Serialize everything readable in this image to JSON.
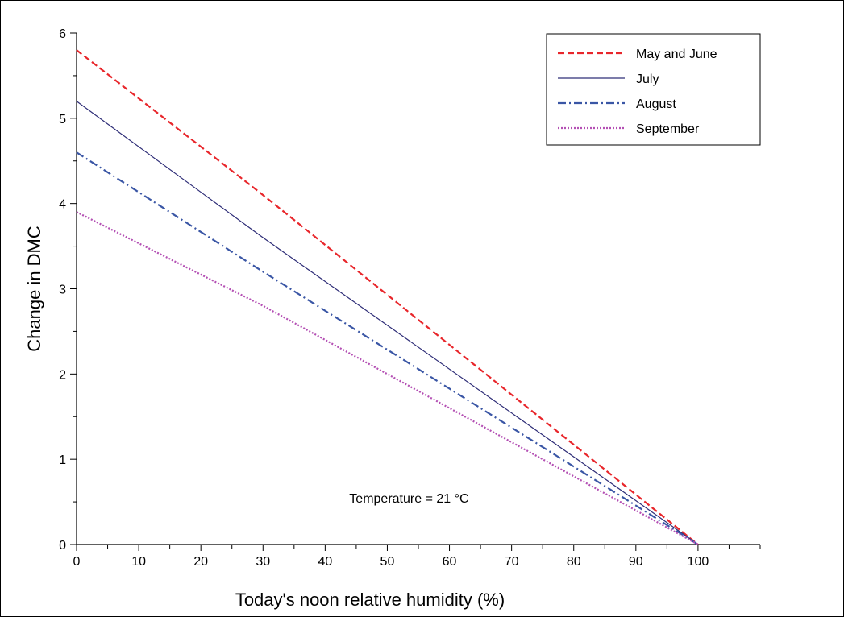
{
  "chart_data": {
    "type": "line",
    "title": "",
    "xlabel": "Today's noon relative humidity (%)",
    "ylabel": "Change in DMC",
    "xlim": [
      0,
      110
    ],
    "ylim": [
      0,
      6
    ],
    "x_ticks": [
      0,
      10,
      20,
      30,
      40,
      50,
      60,
      70,
      80,
      90,
      100
    ],
    "y_ticks": [
      0,
      1,
      2,
      3,
      4,
      5,
      6
    ],
    "grid": false,
    "legend_position": "top-right",
    "annotation": "Temperature = 21 °C",
    "series": [
      {
        "name": "May and June",
        "color": "#e8262b",
        "dash": "dashed",
        "x": [
          0,
          30,
          100
        ],
        "y": [
          5.8,
          4.1,
          0
        ]
      },
      {
        "name": "July",
        "color": "#2e2d77",
        "dash": "solid",
        "x": [
          0,
          30,
          100
        ],
        "y": [
          5.2,
          3.6,
          0
        ]
      },
      {
        "name": "August",
        "color": "#3a56a5",
        "dash": "dash-dot",
        "x": [
          0,
          30,
          100
        ],
        "y": [
          4.6,
          3.2,
          0
        ]
      },
      {
        "name": "September",
        "color": "#b450b4",
        "dash": "dotted",
        "x": [
          0,
          30,
          100
        ],
        "y": [
          3.9,
          2.8,
          0
        ]
      }
    ]
  }
}
